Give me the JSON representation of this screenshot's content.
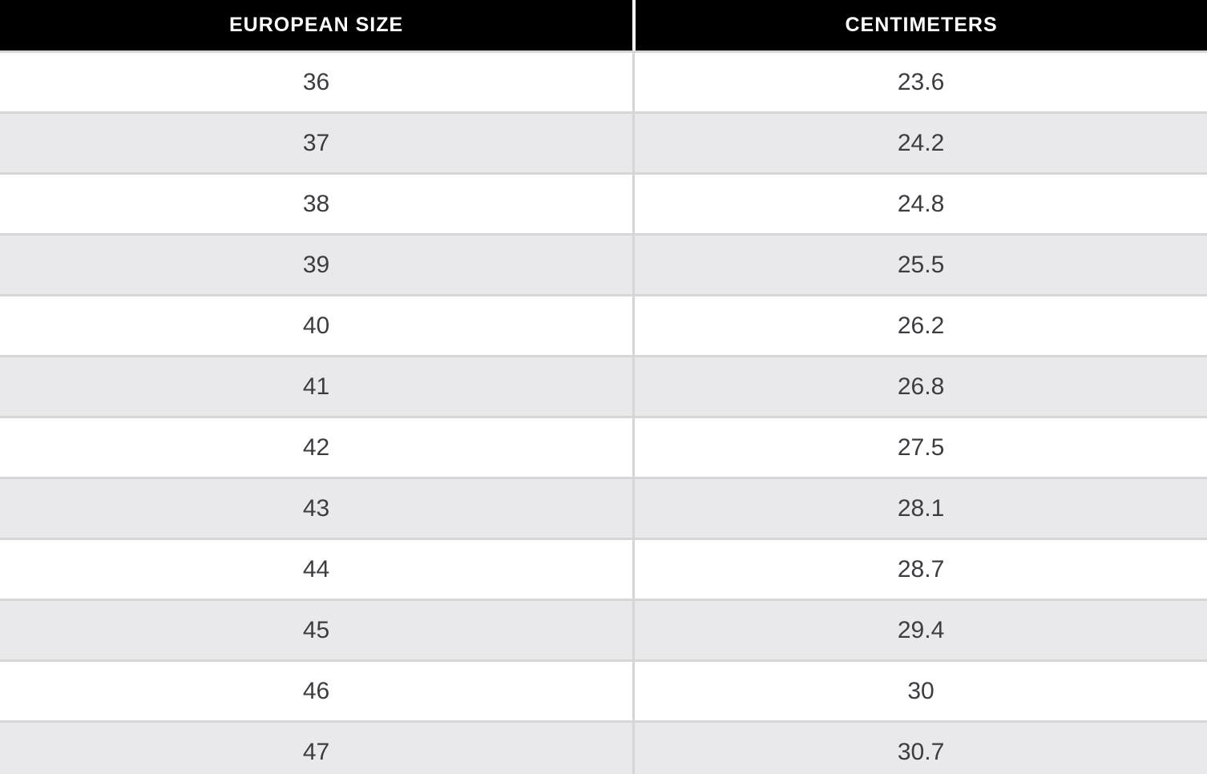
{
  "chart_data": {
    "type": "table",
    "columns": [
      "EUROPEAN SIZE",
      "CENTIMETERS"
    ],
    "rows": [
      [
        "36",
        "23.6"
      ],
      [
        "37",
        "24.2"
      ],
      [
        "38",
        "24.8"
      ],
      [
        "39",
        "25.5"
      ],
      [
        "40",
        "26.2"
      ],
      [
        "41",
        "26.8"
      ],
      [
        "42",
        "27.5"
      ],
      [
        "43",
        "28.1"
      ],
      [
        "44",
        "28.7"
      ],
      [
        "45",
        "29.4"
      ],
      [
        "46",
        "30"
      ],
      [
        "47",
        "30.7"
      ]
    ],
    "title": "",
    "layout": {
      "striped": true,
      "stripe_pattern": "even-rows-gray",
      "header_position": "top",
      "last_row_clipped": true
    }
  },
  "colors": {
    "header_bg": "#000000",
    "header_text": "#ffffff",
    "row_bg": "#ffffff",
    "row_alt_bg": "#e9e8ea",
    "border": "#d6d5d8",
    "text": "#3c3c43"
  }
}
